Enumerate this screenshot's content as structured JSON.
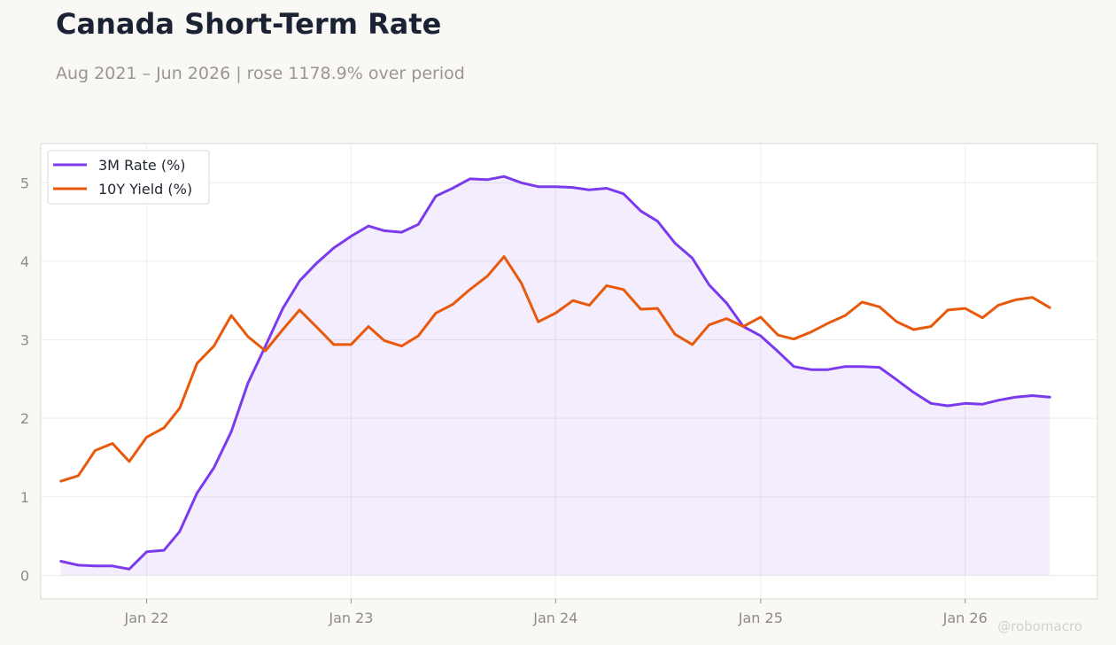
{
  "header": {
    "title": "Canada Short-Term Rate",
    "subtitle": "Aug 2021 – Jun 2026 | rose 1178.9% over period"
  },
  "watermark": "@robomacro",
  "chart_data": {
    "type": "line",
    "x_axis": {
      "type": "date",
      "range": [
        "2021-06-26",
        "2026-08-25"
      ],
      "ticks": [
        {
          "date": "2022-01-01",
          "label": "Jan 22"
        },
        {
          "date": "2023-01-01",
          "label": "Jan 23"
        },
        {
          "date": "2024-01-01",
          "label": "Jan 24"
        },
        {
          "date": "2025-01-01",
          "label": "Jan 25"
        },
        {
          "date": "2026-01-01",
          "label": "Jan 26"
        }
      ]
    },
    "y_axis": {
      "range": [
        -0.3,
        5.5
      ],
      "ticks": [
        0,
        1,
        2,
        3,
        4,
        5
      ]
    },
    "grid": true,
    "legend_position": "top-left",
    "x": [
      "2021-08",
      "2021-09",
      "2021-10",
      "2021-11",
      "2021-12",
      "2022-01",
      "2022-02",
      "2022-03",
      "2022-04",
      "2022-05",
      "2022-06",
      "2022-07",
      "2022-08",
      "2022-09",
      "2022-10",
      "2022-11",
      "2022-12",
      "2023-01",
      "2023-02",
      "2023-03",
      "2023-04",
      "2023-05",
      "2023-06",
      "2023-07",
      "2023-08",
      "2023-09",
      "2023-10",
      "2023-11",
      "2023-12",
      "2024-01",
      "2024-02",
      "2024-03",
      "2024-04",
      "2024-05",
      "2024-06",
      "2024-07",
      "2024-08",
      "2024-09",
      "2024-10",
      "2024-11",
      "2024-12",
      "2025-01",
      "2025-02",
      "2025-03",
      "2025-04",
      "2025-05",
      "2025-06",
      "2025-07",
      "2025-08",
      "2025-09",
      "2025-10",
      "2025-11",
      "2025-12",
      "2026-01",
      "2026-02",
      "2026-03",
      "2026-04",
      "2026-05",
      "2026-06"
    ],
    "series": [
      {
        "name": "3M Rate (%)",
        "color": "#7c3aed",
        "fill": true,
        "values": [
          0.18,
          0.13,
          0.12,
          0.12,
          0.08,
          0.3,
          0.32,
          0.56,
          1.05,
          1.37,
          1.83,
          2.45,
          2.92,
          3.4,
          3.75,
          3.98,
          4.17,
          4.32,
          4.45,
          4.39,
          4.37,
          4.47,
          4.83,
          4.93,
          5.05,
          5.04,
          5.08,
          5.0,
          4.95,
          4.95,
          4.94,
          4.91,
          4.93,
          4.86,
          4.64,
          4.51,
          4.23,
          4.04,
          3.7,
          3.47,
          3.17,
          3.05,
          2.85,
          2.66,
          2.62,
          2.62,
          2.66,
          2.66,
          2.65,
          2.49,
          2.33,
          2.19,
          2.16,
          2.19,
          2.18,
          2.23,
          2.27,
          2.29,
          2.27
        ]
      },
      {
        "name": "10Y Yield (%)",
        "color": "#e8590c",
        "fill": false,
        "values": [
          1.2,
          1.27,
          1.59,
          1.68,
          1.45,
          1.76,
          1.88,
          2.13,
          2.7,
          2.92,
          3.31,
          3.04,
          2.86,
          3.13,
          3.38,
          3.16,
          2.94,
          2.94,
          3.17,
          2.99,
          2.92,
          3.05,
          3.34,
          3.45,
          3.64,
          3.81,
          4.06,
          3.72,
          3.23,
          3.34,
          3.5,
          3.44,
          3.69,
          3.64,
          3.39,
          3.4,
          3.07,
          2.94,
          3.19,
          3.27,
          3.17,
          3.29,
          3.06,
          3.01,
          3.1,
          3.21,
          3.31,
          3.48,
          3.42,
          3.23,
          3.13,
          3.17,
          3.38,
          3.4,
          3.28,
          3.44,
          3.51,
          3.54,
          3.41
        ]
      }
    ]
  }
}
